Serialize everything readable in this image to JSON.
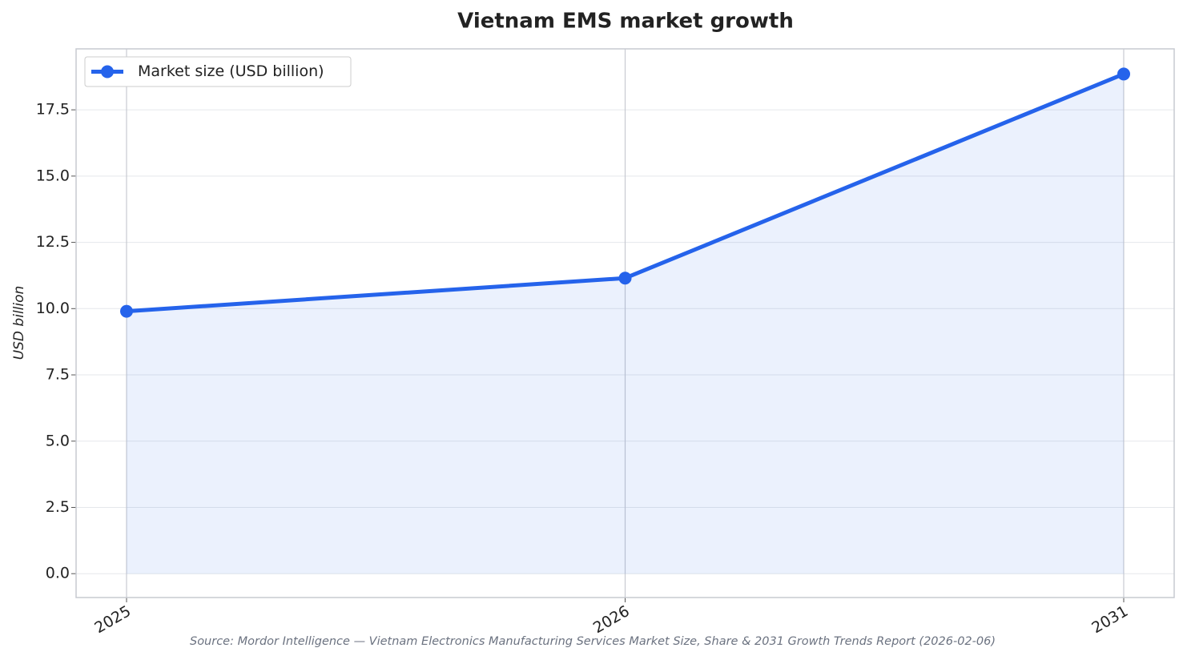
{
  "chart_data": {
    "type": "line",
    "title": "Vietnam EMS market growth",
    "y_label": "USD billion",
    "source": "Source: Mordor Intelligence — Vietnam Electronics Manufacturing Services Market Size, Share & 2031 Growth Trends Report (2026-02-06)",
    "categories": [
      "2025",
      "2026",
      "2031"
    ],
    "series": [
      {
        "name": "Market size (USD billion)",
        "color": "#2563eb",
        "values": [
          9.9,
          11.15,
          18.85
        ]
      }
    ],
    "ylim": [
      -0.9,
      19.8
    ],
    "yticks": [
      {
        "value": 0,
        "label": "0.0"
      },
      {
        "value": 2.5,
        "label": "2.5"
      },
      {
        "value": 5,
        "label": "5.0"
      },
      {
        "value": 7.5,
        "label": "7.5"
      },
      {
        "value": 10,
        "label": "10.0"
      },
      {
        "value": 12.5,
        "label": "12.5"
      },
      {
        "value": 15,
        "label": "15.0"
      },
      {
        "value": 17.5,
        "label": "17.5"
      }
    ],
    "grid": true,
    "area_fill": true,
    "legend": "upper left"
  }
}
